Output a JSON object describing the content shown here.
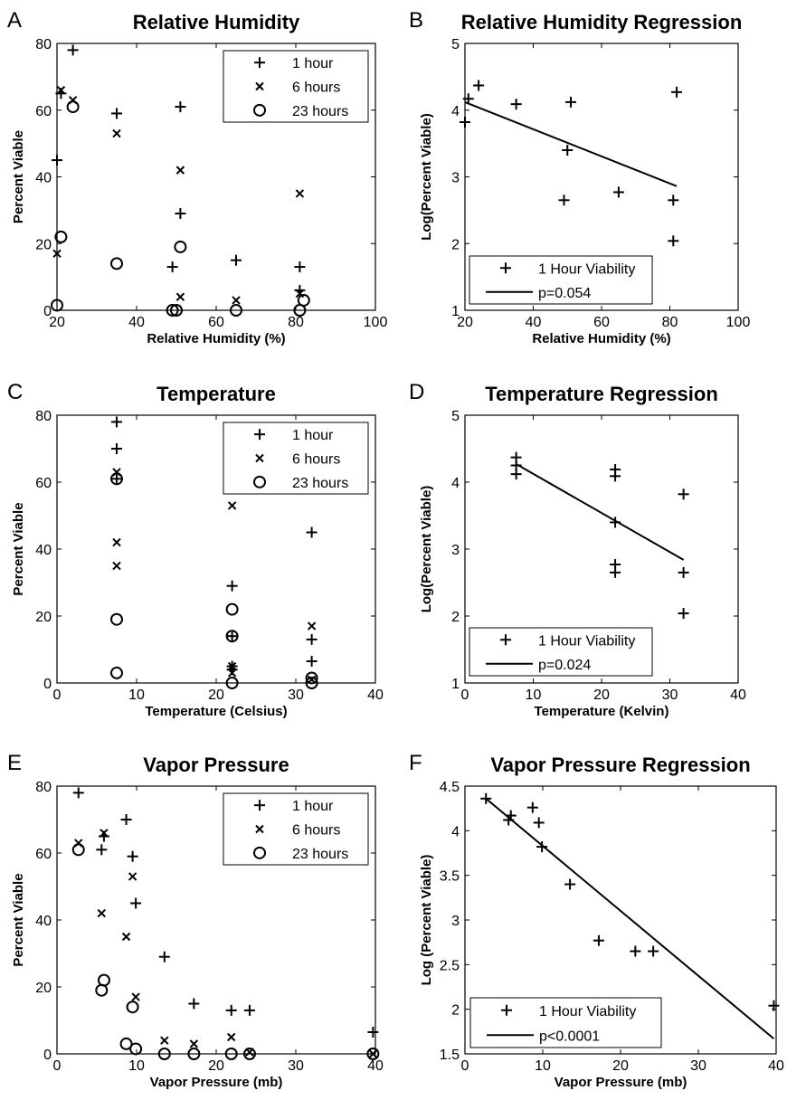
{
  "chart_data": [
    {
      "panel": "A",
      "type": "scatter",
      "title": "Relative Humidity",
      "xlabel": "Relative Humidity (%)",
      "ylabel": "Percent Viable",
      "xlim": [
        20,
        100
      ],
      "ylim": [
        0,
        80
      ],
      "xticks": [
        20,
        40,
        60,
        80,
        100
      ],
      "yticks": [
        0,
        20,
        40,
        60,
        80
      ],
      "legend_position": "top-right",
      "series": [
        {
          "name": "1 hour",
          "marker": "plus",
          "points": [
            [
              20,
              45
            ],
            [
              21,
              65
            ],
            [
              24,
              78
            ],
            [
              35,
              59
            ],
            [
              49,
              13
            ],
            [
              51,
              61
            ],
            [
              51,
              29
            ],
            [
              65,
              15
            ],
            [
              81,
              13
            ],
            [
              81,
              6
            ]
          ]
        },
        {
          "name": "6 hours",
          "marker": "x",
          "points": [
            [
              20,
              17
            ],
            [
              21,
              66
            ],
            [
              24,
              63
            ],
            [
              35,
              53
            ],
            [
              51,
              42
            ],
            [
              51,
              4
            ],
            [
              65,
              3
            ],
            [
              81,
              35
            ],
            [
              81,
              5
            ]
          ]
        },
        {
          "name": "23 hours",
          "marker": "circle",
          "points": [
            [
              20,
              1.5
            ],
            [
              21,
              22
            ],
            [
              24,
              61
            ],
            [
              35,
              14
            ],
            [
              49,
              0
            ],
            [
              50,
              0
            ],
            [
              51,
              19
            ],
            [
              65,
              0
            ],
            [
              81,
              0
            ],
            [
              82,
              3
            ]
          ]
        }
      ]
    },
    {
      "panel": "B",
      "type": "scatter",
      "title": "Relative Humidity Regression",
      "xlabel": "Relative Humidity (%)",
      "ylabel": "Log(Percent Viable)",
      "xlim": [
        20,
        100
      ],
      "ylim": [
        1,
        5
      ],
      "xticks": [
        20,
        40,
        60,
        80,
        100
      ],
      "yticks": [
        1,
        2,
        3,
        4,
        5
      ],
      "legend_position": "bottom-left",
      "series": [
        {
          "name": "1 Hour Viability",
          "marker": "plus",
          "points": [
            [
              20,
              3.82
            ],
            [
              21,
              4.17
            ],
            [
              24,
              4.37
            ],
            [
              35,
              4.09
            ],
            [
              49,
              2.65
            ],
            [
              50,
              3.4
            ],
            [
              51,
              4.12
            ],
            [
              65,
              2.77
            ],
            [
              81,
              2.65
            ],
            [
              81,
              2.04
            ],
            [
              82,
              4.27
            ]
          ]
        },
        {
          "name": "p=0.054",
          "marker": "line",
          "points": [
            [
              20,
              4.12
            ],
            [
              82,
              2.86
            ]
          ]
        }
      ]
    },
    {
      "panel": "C",
      "type": "scatter",
      "title": "Temperature",
      "xlabel": "Temperature (Celsius)",
      "ylabel": "Percent Viable",
      "xlim": [
        0,
        40
      ],
      "ylim": [
        0,
        80
      ],
      "xticks": [
        0,
        10,
        20,
        30,
        40
      ],
      "yticks": [
        0,
        20,
        40,
        60,
        80
      ],
      "legend_position": "top-right",
      "series": [
        {
          "name": "1 hour",
          "marker": "plus",
          "points": [
            [
              7.5,
              78
            ],
            [
              7.5,
              70
            ],
            [
              7.5,
              61
            ],
            [
              22,
              29
            ],
            [
              22,
              14
            ],
            [
              22,
              5
            ],
            [
              22,
              4
            ],
            [
              32,
              45
            ],
            [
              32,
              13
            ],
            [
              32,
              6.5
            ]
          ]
        },
        {
          "name": "6 hours",
          "marker": "x",
          "points": [
            [
              7.5,
              63
            ],
            [
              7.5,
              42
            ],
            [
              7.5,
              35
            ],
            [
              22,
              53
            ],
            [
              22,
              5
            ],
            [
              22,
              3
            ],
            [
              32,
              17
            ],
            [
              32,
              1
            ]
          ]
        },
        {
          "name": "23 hours",
          "marker": "circle",
          "points": [
            [
              7.5,
              61
            ],
            [
              7.5,
              19
            ],
            [
              7.5,
              3
            ],
            [
              22,
              22
            ],
            [
              22,
              14
            ],
            [
              22,
              0
            ],
            [
              32,
              1.5
            ],
            [
              32,
              0
            ]
          ]
        }
      ]
    },
    {
      "panel": "D",
      "type": "scatter",
      "title": "Temperature Regression",
      "xlabel": "Temperature (Kelvin)",
      "ylabel": "Log(Percent Viable)",
      "xlim": [
        0,
        40
      ],
      "ylim": [
        1,
        5
      ],
      "xticks": [
        0,
        10,
        20,
        30,
        40
      ],
      "yticks": [
        1,
        2,
        3,
        4,
        5
      ],
      "legend_position": "bottom-left",
      "series": [
        {
          "name": "1 Hour Viability",
          "marker": "plus",
          "points": [
            [
              7.5,
              4.37
            ],
            [
              7.5,
              4.25
            ],
            [
              7.5,
              4.12
            ],
            [
              22,
              4.19
            ],
            [
              22,
              4.09
            ],
            [
              22,
              3.4
            ],
            [
              22,
              2.77
            ],
            [
              22,
              2.65
            ],
            [
              32,
              3.82
            ],
            [
              32,
              2.65
            ],
            [
              32,
              2.04
            ]
          ]
        },
        {
          "name": "p=0.024",
          "marker": "line",
          "points": [
            [
              7.5,
              4.27
            ],
            [
              32,
              2.84
            ]
          ]
        }
      ]
    },
    {
      "panel": "E",
      "type": "scatter",
      "title": "Vapor Pressure",
      "xlabel": "Vapor Pressure (mb)",
      "ylabel": "Percent Viable",
      "xlim": [
        0,
        40
      ],
      "ylim": [
        0,
        80
      ],
      "xticks": [
        0,
        10,
        20,
        30,
        40
      ],
      "yticks": [
        0,
        20,
        40,
        60,
        80
      ],
      "legend_position": "top-right",
      "series": [
        {
          "name": "1 hour",
          "marker": "plus",
          "points": [
            [
              2.7,
              78
            ],
            [
              5.6,
              61
            ],
            [
              5.9,
              65
            ],
            [
              8.7,
              70
            ],
            [
              9.5,
              59
            ],
            [
              9.9,
              45
            ],
            [
              13.5,
              29
            ],
            [
              17.2,
              15
            ],
            [
              21.9,
              13
            ],
            [
              24.2,
              13
            ],
            [
              39.7,
              6.5
            ]
          ]
        },
        {
          "name": "6 hours",
          "marker": "x",
          "points": [
            [
              2.7,
              63
            ],
            [
              5.6,
              42
            ],
            [
              5.9,
              66
            ],
            [
              8.7,
              35
            ],
            [
              9.5,
              53
            ],
            [
              9.9,
              17
            ],
            [
              13.5,
              4
            ],
            [
              17.2,
              3
            ],
            [
              21.9,
              5
            ],
            [
              24.2,
              0.5
            ],
            [
              39.7,
              0
            ]
          ]
        },
        {
          "name": "23 hours",
          "marker": "circle",
          "points": [
            [
              2.7,
              61
            ],
            [
              5.6,
              19
            ],
            [
              5.9,
              22
            ],
            [
              8.7,
              3
            ],
            [
              9.5,
              14
            ],
            [
              9.9,
              1.5
            ],
            [
              13.5,
              0
            ],
            [
              17.2,
              0
            ],
            [
              21.9,
              0
            ],
            [
              24.2,
              0
            ],
            [
              39.7,
              0
            ]
          ]
        }
      ]
    },
    {
      "panel": "F",
      "type": "scatter",
      "title": "Vapor Pressure Regression",
      "xlabel": "Vapor Pressure (mb)",
      "ylabel": "Log (Percent Viable)",
      "xlim": [
        0,
        40
      ],
      "ylim": [
        1.5,
        4.5
      ],
      "xticks": [
        0,
        10,
        20,
        30,
        40
      ],
      "yticks": [
        1.5,
        2,
        2.5,
        3,
        3.5,
        4,
        4.5
      ],
      "legend_position": "bottom-left",
      "series": [
        {
          "name": "1 Hour Viability",
          "marker": "plus",
          "points": [
            [
              2.7,
              4.36
            ],
            [
              5.6,
              4.12
            ],
            [
              5.9,
              4.17
            ],
            [
              8.7,
              4.26
            ],
            [
              9.5,
              4.09
            ],
            [
              9.9,
              3.82
            ],
            [
              13.5,
              3.4
            ],
            [
              17.2,
              2.77
            ],
            [
              21.9,
              2.65
            ],
            [
              24.2,
              2.65
            ],
            [
              39.7,
              2.04
            ]
          ]
        },
        {
          "name": "p<0.0001",
          "marker": "line",
          "points": [
            [
              2.7,
              4.36
            ],
            [
              39.7,
              1.67
            ]
          ]
        }
      ]
    }
  ]
}
